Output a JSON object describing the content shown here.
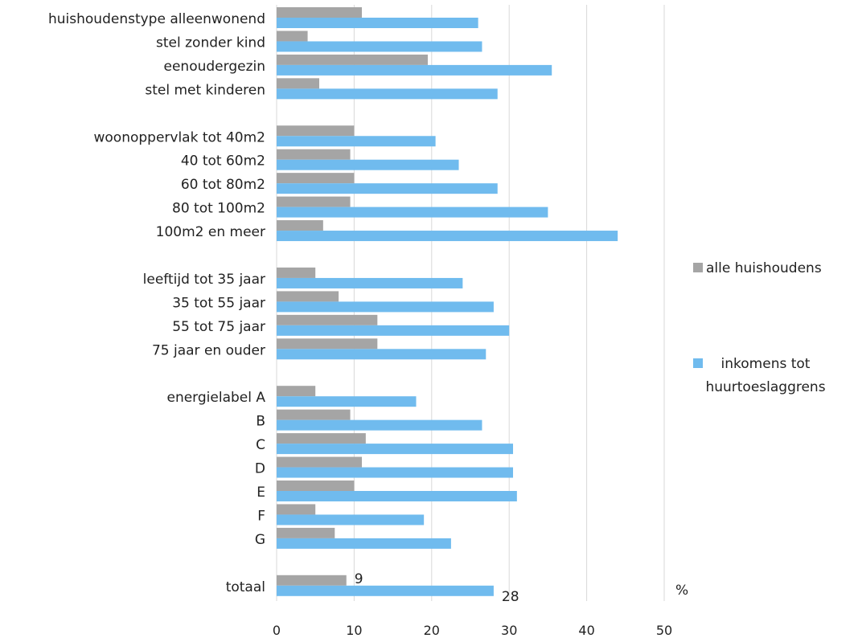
{
  "chart_data": {
    "type": "bar",
    "orientation": "horizontal",
    "unit_label": "%",
    "xlim": [
      0,
      50
    ],
    "x_ticks": [
      "0",
      "10",
      "20",
      "30",
      "40",
      "50"
    ],
    "grid": true,
    "legend_position": "right",
    "categories": [
      "huishoudenstype alleenwonend",
      "stel zonder kind",
      "eenoudergezin",
      "stel met kinderen",
      "",
      "woonoppervlak tot 40m2",
      "40 tot 60m2",
      "60 tot 80m2",
      "80 tot 100m2",
      "100m2 en meer",
      "",
      "leeftijd tot 35 jaar",
      "35 tot 55 jaar",
      "55 tot 75 jaar",
      "75 jaar en ouder",
      "",
      "energielabel A",
      "B",
      "C",
      "D",
      "E",
      "F",
      "G",
      "",
      "totaal"
    ],
    "series": [
      {
        "name": "alle huishoudens",
        "color": "#a5a5a5",
        "values": [
          11,
          4,
          19.5,
          5.5,
          null,
          10,
          9.5,
          10,
          9.5,
          6,
          null,
          5,
          8,
          13,
          13,
          null,
          5,
          9.5,
          11.5,
          11,
          10,
          5,
          7.5,
          null,
          9
        ]
      },
      {
        "name": "inkomens tot huurtoeslaggrens",
        "color": "#70bbee",
        "values": [
          26,
          26.5,
          35.5,
          28.5,
          null,
          20.5,
          23.5,
          28.5,
          35,
          44,
          null,
          24,
          28,
          30,
          27,
          null,
          18,
          26.5,
          30.5,
          30.5,
          31,
          19,
          22.5,
          null,
          28
        ]
      }
    ],
    "data_labels": [
      {
        "category_index": 24,
        "series_index": 0,
        "text": "9"
      },
      {
        "category_index": 24,
        "series_index": 1,
        "text": "28"
      }
    ]
  }
}
